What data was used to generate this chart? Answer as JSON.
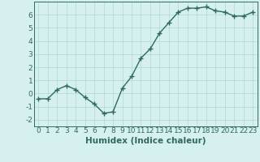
{
  "xlabel": "Humidex (Indice chaleur)",
  "x": [
    0,
    1,
    2,
    3,
    4,
    5,
    6,
    7,
    8,
    9,
    10,
    11,
    12,
    13,
    14,
    15,
    16,
    17,
    18,
    19,
    20,
    21,
    22,
    23
  ],
  "y": [
    -0.4,
    -0.4,
    0.3,
    0.6,
    0.3,
    -0.3,
    -0.8,
    -1.5,
    -1.4,
    0.4,
    1.3,
    2.7,
    3.4,
    4.6,
    5.4,
    6.2,
    6.5,
    6.5,
    6.6,
    6.3,
    6.2,
    5.9,
    5.9,
    6.2
  ],
  "line_color": "#2e6b5e",
  "marker": "+",
  "marker_size": 4,
  "bg_color": "#d6f0f0",
  "grid_color": "#b0d8d8",
  "ylim": [
    -2.5,
    7.0
  ],
  "xlim": [
    -0.5,
    23.5
  ],
  "yticks": [
    -2,
    -1,
    0,
    1,
    2,
    3,
    4,
    5,
    6
  ],
  "xticks": [
    0,
    1,
    2,
    3,
    4,
    5,
    6,
    7,
    8,
    9,
    10,
    11,
    12,
    13,
    14,
    15,
    16,
    17,
    18,
    19,
    20,
    21,
    22,
    23
  ],
  "tick_color": "#2e6b5e",
  "xlabel_fontsize": 7.5,
  "tick_fontsize": 6.5,
  "linewidth": 1.0,
  "marker_linewidth": 1.0
}
